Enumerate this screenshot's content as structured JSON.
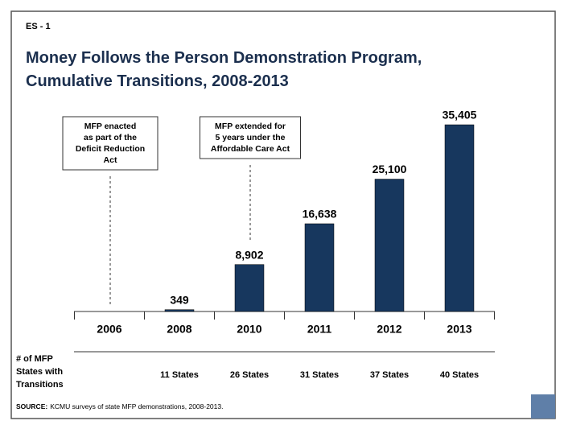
{
  "chart_data": {
    "type": "bar",
    "slide_id": "ES - 1",
    "title": "Money Follows the Person Demonstration Program,\nCumulative Transitions, 2008-2013",
    "categories": [
      "2006",
      "2008",
      "2010",
      "2011",
      "2012",
      "2013"
    ],
    "values": [
      null,
      349,
      8902,
      16638,
      25100,
      35405
    ],
    "value_labels": [
      null,
      "349",
      "8,902",
      "16,638",
      "25,100",
      "35,405"
    ],
    "color": "#17375e",
    "row_label": [
      "# of MFP",
      "States with",
      "Transitions"
    ],
    "states": [
      null,
      "11 States",
      "26 States",
      "31 States",
      "37 States",
      "40 States"
    ],
    "annotations": [
      {
        "category": "2006",
        "lines": [
          "MFP enacted",
          "as part of the",
          "Deficit Reduction",
          "Act"
        ]
      },
      {
        "category": "2010",
        "lines": [
          "MFP extended for",
          "5 years under the",
          "Affordable Care Act"
        ]
      }
    ],
    "source_label": "SOURCE:",
    "source": "KCMU surveys of state MFP demonstrations, 2008-2013."
  }
}
